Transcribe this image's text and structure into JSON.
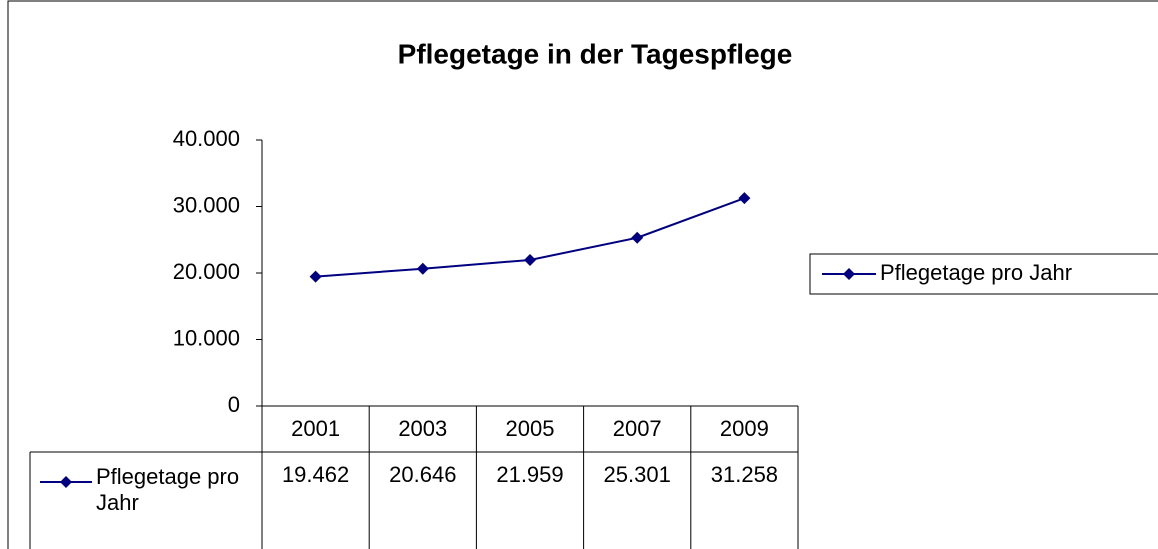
{
  "chart_data": {
    "type": "line",
    "title": "Pflegetage in der Tagespflege",
    "categories": [
      "2001",
      "2003",
      "2005",
      "2007",
      "2009"
    ],
    "series": [
      {
        "name": "Pflegetage pro Jahr",
        "color": "#000080",
        "values": [
          19462,
          20646,
          21959,
          25301,
          31258
        ],
        "value_labels": [
          "19.462",
          "20.646",
          "21.959",
          "25.301",
          "31.258"
        ]
      }
    ],
    "ylim": [
      0,
      40000
    ],
    "yticks": [
      0,
      {
        "value": 10000,
        "label": "10.000"
      },
      {
        "value": 20000,
        "label": "20.000"
      },
      {
        "value": 30000,
        "label": "30.000"
      },
      {
        "value": 40000,
        "label": "40.000"
      }
    ],
    "legend": "right",
    "data_table": true
  }
}
